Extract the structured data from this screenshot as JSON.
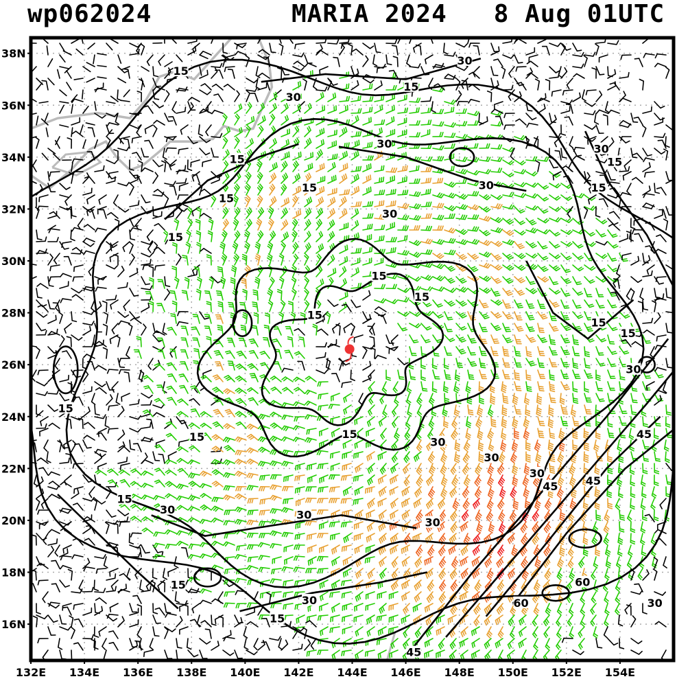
{
  "header": {
    "storm_id": "wp062024",
    "storm_info": "MARIA 2024   8 Aug 01UTC"
  },
  "map": {
    "lat_labels": [
      "38N",
      "36N",
      "34N",
      "32N",
      "30N",
      "28N",
      "26N",
      "24N",
      "22N",
      "20N",
      "18N",
      "16N"
    ],
    "lat_values": [
      38,
      36,
      34,
      32,
      30,
      28,
      26,
      24,
      22,
      20,
      18,
      16
    ],
    "lon_labels": [
      "132E",
      "134E",
      "136E",
      "138E",
      "140E",
      "142E",
      "144E",
      "146E",
      "148E",
      "150E",
      "152E",
      "154E"
    ],
    "lon_values": [
      132,
      134,
      136,
      138,
      140,
      142,
      144,
      146,
      148,
      150,
      152,
      154
    ],
    "lat_range": [
      14.6,
      38.6
    ],
    "lon_range": [
      132,
      156
    ],
    "storm_center": {
      "lat": 26.6,
      "lon": 143.9
    },
    "colors": {
      "wind_black": "#000000",
      "wind_green": "#22cc00",
      "wind_orange": "#e8a030",
      "wind_darkorange": "#ee6622",
      "wind_red": "#ee2222",
      "coastline": "#bbbbbb",
      "grid": "#aaaaaa",
      "storm_symbol": "#ee3333"
    },
    "contour_labels": [
      {
        "text": "15",
        "lat": 37.3,
        "lon": 137.6
      },
      {
        "text": "30",
        "lat": 36.3,
        "lon": 141.8
      },
      {
        "text": "15",
        "lat": 36.7,
        "lon": 146.2
      },
      {
        "text": "30",
        "lat": 37.7,
        "lon": 148.2
      },
      {
        "text": "30",
        "lat": 34.5,
        "lon": 145.2
      },
      {
        "text": "15",
        "lat": 33.9,
        "lon": 139.7
      },
      {
        "text": "15",
        "lat": 32.4,
        "lon": 139.3
      },
      {
        "text": "15",
        "lat": 32.8,
        "lon": 142.4
      },
      {
        "text": "30",
        "lat": 31.8,
        "lon": 145.4
      },
      {
        "text": "30",
        "lat": 32.9,
        "lon": 149.0
      },
      {
        "text": "30",
        "lat": 34.3,
        "lon": 153.3
      },
      {
        "text": "15",
        "lat": 33.8,
        "lon": 153.8
      },
      {
        "text": "15",
        "lat": 32.8,
        "lon": 153.2
      },
      {
        "text": "15",
        "lat": 30.9,
        "lon": 137.4
      },
      {
        "text": "15",
        "lat": 29.4,
        "lon": 145.0
      },
      {
        "text": "15",
        "lat": 28.6,
        "lon": 146.6
      },
      {
        "text": "15",
        "lat": 27.9,
        "lon": 142.6
      },
      {
        "text": "15",
        "lat": 27.6,
        "lon": 153.2
      },
      {
        "text": "15",
        "lat": 27.2,
        "lon": 154.3
      },
      {
        "text": "30",
        "lat": 25.8,
        "lon": 154.5
      },
      {
        "text": "15",
        "lat": 24.3,
        "lon": 133.3
      },
      {
        "text": "15",
        "lat": 23.2,
        "lon": 138.2
      },
      {
        "text": "15",
        "lat": 23.3,
        "lon": 143.9
      },
      {
        "text": "30",
        "lat": 23.0,
        "lon": 147.2
      },
      {
        "text": "30",
        "lat": 22.4,
        "lon": 149.2
      },
      {
        "text": "30",
        "lat": 21.8,
        "lon": 150.9
      },
      {
        "text": "45",
        "lat": 23.3,
        "lon": 154.9
      },
      {
        "text": "45",
        "lat": 21.3,
        "lon": 151.4
      },
      {
        "text": "45",
        "lat": 21.5,
        "lon": 153.0
      },
      {
        "text": "15",
        "lat": 20.8,
        "lon": 135.5
      },
      {
        "text": "30",
        "lat": 20.4,
        "lon": 137.1
      },
      {
        "text": "30",
        "lat": 20.2,
        "lon": 142.2
      },
      {
        "text": "30",
        "lat": 19.9,
        "lon": 147.0
      },
      {
        "text": "60",
        "lat": 17.6,
        "lon": 152.6
      },
      {
        "text": "60",
        "lat": 16.8,
        "lon": 150.3
      },
      {
        "text": "30",
        "lat": 16.8,
        "lon": 155.3
      },
      {
        "text": "15",
        "lat": 17.5,
        "lon": 137.5
      },
      {
        "text": "30",
        "lat": 16.9,
        "lon": 142.4
      },
      {
        "text": "15",
        "lat": 16.2,
        "lon": 141.2
      },
      {
        "text": "45",
        "lat": 14.9,
        "lon": 146.3
      }
    ]
  }
}
